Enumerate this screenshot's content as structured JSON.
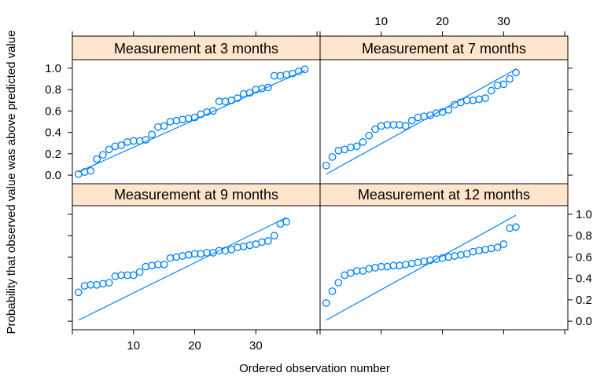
{
  "chart_data": {
    "type": "scatter",
    "layout": "2x2 trellis panels, shared axes",
    "xlabel": "Ordered observation number",
    "ylabel": "Probability that observed value was above predicted value",
    "x_ticks": [
      10,
      20,
      30
    ],
    "y_ticks": [
      "0.0",
      "0.2",
      "0.4",
      "0.6",
      "0.8",
      "1.0"
    ],
    "xlim": [
      0,
      40.5
    ],
    "ylim": [
      -0.08,
      1.08
    ],
    "strip_color": "#ffe5cc",
    "point_color": "#0080ff",
    "line_color": "#0080ff",
    "panels": [
      {
        "title": "Measurement at 3 months",
        "row": 0,
        "col": 0,
        "points": [
          0.01,
          0.03,
          0.04,
          0.15,
          0.19,
          0.24,
          0.27,
          0.28,
          0.31,
          0.32,
          0.32,
          0.33,
          0.38,
          0.45,
          0.46,
          0.5,
          0.51,
          0.52,
          0.53,
          0.54,
          0.57,
          0.59,
          0.6,
          0.69,
          0.69,
          0.7,
          0.72,
          0.76,
          0.77,
          0.8,
          0.81,
          0.82,
          0.93,
          0.93,
          0.94,
          0.95,
          0.97,
          0.99
        ],
        "ref_line": {
          "x": [
            1,
            38
          ],
          "y": [
            0.03,
            0.98
          ]
        }
      },
      {
        "title": "Measurement at 7 months",
        "row": 0,
        "col": 1,
        "points": [
          0.09,
          0.17,
          0.23,
          0.24,
          0.26,
          0.27,
          0.31,
          0.37,
          0.43,
          0.46,
          0.47,
          0.47,
          0.47,
          0.46,
          0.51,
          0.54,
          0.55,
          0.56,
          0.58,
          0.59,
          0.61,
          0.66,
          0.68,
          0.7,
          0.7,
          0.71,
          0.72,
          0.79,
          0.84,
          0.85,
          0.9,
          0.96
        ],
        "ref_line": {
          "x": [
            1,
            32
          ],
          "y": [
            0.01,
            0.99
          ]
        }
      },
      {
        "title": "Measurement at 9 months",
        "row": 1,
        "col": 0,
        "points": [
          0.27,
          0.33,
          0.34,
          0.34,
          0.35,
          0.36,
          0.42,
          0.43,
          0.43,
          0.43,
          0.46,
          0.51,
          0.52,
          0.53,
          0.53,
          0.59,
          0.6,
          0.61,
          0.62,
          0.63,
          0.63,
          0.64,
          0.64,
          0.66,
          0.66,
          0.67,
          0.69,
          0.7,
          0.71,
          0.72,
          0.74,
          0.75,
          0.8,
          0.91,
          0.93
        ],
        "ref_line": {
          "x": [
            1,
            35
          ],
          "y": [
            0.01,
            0.97
          ]
        }
      },
      {
        "title": "Measurement at 12 months",
        "row": 1,
        "col": 1,
        "points": [
          0.17,
          0.28,
          0.36,
          0.43,
          0.45,
          0.47,
          0.47,
          0.49,
          0.5,
          0.51,
          0.51,
          0.52,
          0.52,
          0.53,
          0.54,
          0.55,
          0.56,
          0.57,
          0.58,
          0.59,
          0.6,
          0.61,
          0.62,
          0.63,
          0.65,
          0.66,
          0.67,
          0.68,
          0.69,
          0.72,
          0.87,
          0.88
        ],
        "ref_line": {
          "x": [
            1,
            32
          ],
          "y": [
            0.01,
            0.99
          ]
        }
      }
    ]
  }
}
